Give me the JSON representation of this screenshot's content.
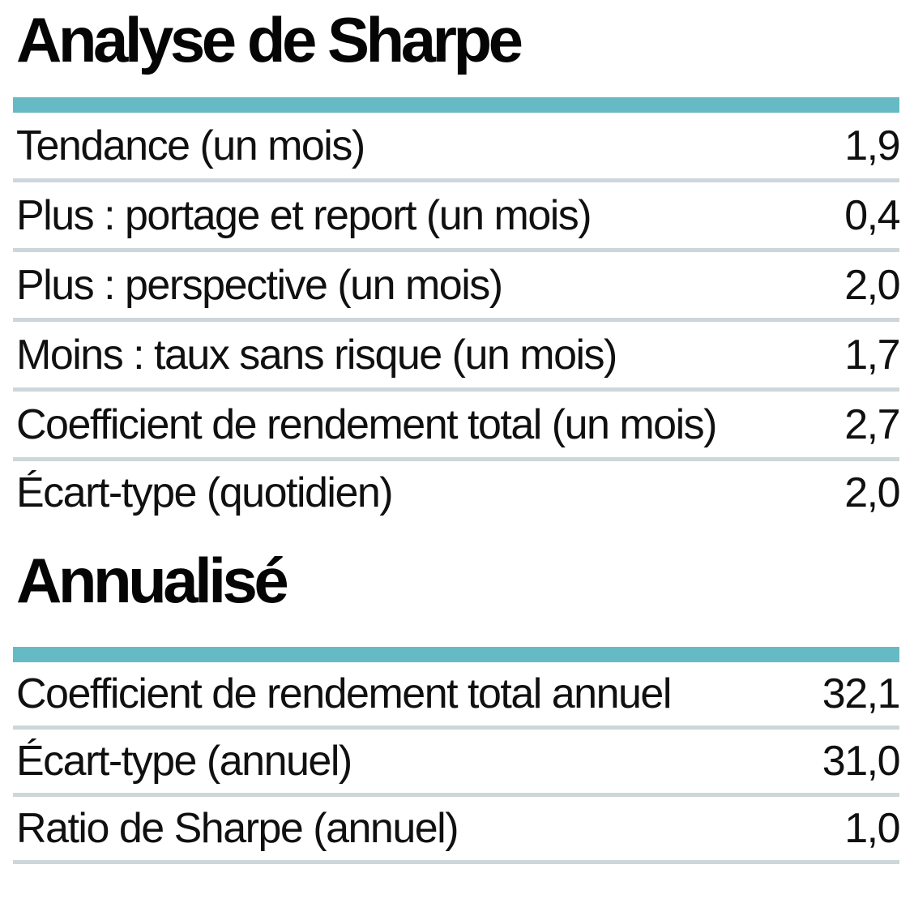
{
  "document": {
    "sections": [
      {
        "title": "Analyse de Sharpe",
        "rows": [
          {
            "label": "Tendance (un mois)",
            "value": "1,9"
          },
          {
            "label": "Plus : portage et report (un mois)",
            "value": "0,4"
          },
          {
            "label": "Plus : perspective (un mois)",
            "value": "2,0"
          },
          {
            "label": "Moins : taux sans risque (un mois)",
            "value": "1,7"
          },
          {
            "label": "Coefficient de rendement total (un mois)",
            "value": "2,7"
          },
          {
            "label": "Écart-type (quotidien)",
            "value": "2,0"
          }
        ]
      },
      {
        "title": "Annualisé",
        "rows": [
          {
            "label": "Coefficient de rendement total annuel",
            "value": "32,1"
          },
          {
            "label": "Écart-type (annuel)",
            "value": "31,0"
          },
          {
            "label": "Ratio de Sharpe (annuel)",
            "value": "1,0"
          }
        ]
      }
    ]
  },
  "colors": {
    "accent_bar": "#66bac5",
    "row_divider": "#cdd6db",
    "text": "#101010"
  },
  "chart_data": {
    "type": "table",
    "tables": [
      {
        "title": "Analyse de Sharpe",
        "rows": [
          [
            "Tendance (un mois)",
            1.9
          ],
          [
            "Plus : portage et report (un mois)",
            0.4
          ],
          [
            "Plus : perspective (un mois)",
            2.0
          ],
          [
            "Moins : taux sans risque (un mois)",
            1.7
          ],
          [
            "Coefficient de rendement total (un mois)",
            2.7
          ],
          [
            "Écart-type (quotidien)",
            2.0
          ]
        ]
      },
      {
        "title": "Annualisé",
        "rows": [
          [
            "Coefficient de rendement total annuel",
            32.1
          ],
          [
            "Écart-type (annuel)",
            31.0
          ],
          [
            "Ratio de Sharpe (annuel)",
            1.0
          ]
        ]
      }
    ],
    "notes": "Decimal values displayed with French comma notation; no column headers visible"
  }
}
